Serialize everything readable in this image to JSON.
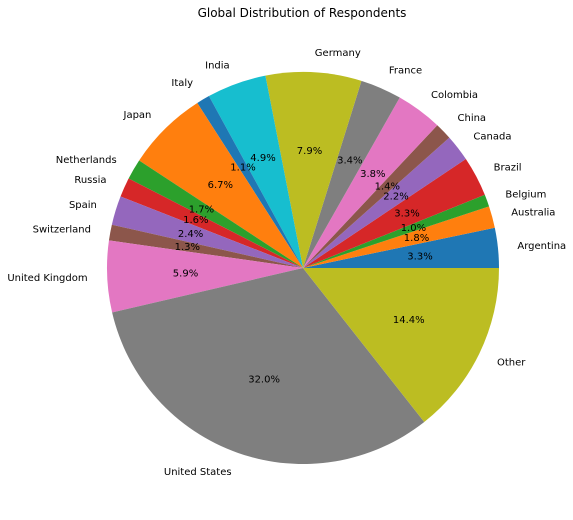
{
  "chart_data": {
    "type": "pie",
    "title": "Global Distribution of Respondents",
    "start_angle_deg": 0,
    "direction": "counterclockwise",
    "slices": [
      {
        "label": "Argentina",
        "value": 3.3,
        "pct_label": "3.3%",
        "color": "#1f77b4"
      },
      {
        "label": "Australia",
        "value": 1.8,
        "pct_label": "1.8%",
        "color": "#ff7f0e"
      },
      {
        "label": "Belgium",
        "value": 1.0,
        "pct_label": "1.0%",
        "color": "#2ca02c"
      },
      {
        "label": "Brazil",
        "value": 3.3,
        "pct_label": "3.3%",
        "color": "#d62728"
      },
      {
        "label": "Canada",
        "value": 2.2,
        "pct_label": "2.2%",
        "color": "#9467bd"
      },
      {
        "label": "China",
        "value": 1.4,
        "pct_label": "1.4%",
        "color": "#8c564b"
      },
      {
        "label": "Colombia",
        "value": 3.8,
        "pct_label": "3.8%",
        "color": "#e377c2"
      },
      {
        "label": "France",
        "value": 3.4,
        "pct_label": "3.4%",
        "color": "#7f7f7f"
      },
      {
        "label": "Germany",
        "value": 7.9,
        "pct_label": "7.9%",
        "color": "#bcbd22"
      },
      {
        "label": "India",
        "value": 4.9,
        "pct_label": "4.9%",
        "color": "#17becf"
      },
      {
        "label": "Italy",
        "value": 1.1,
        "pct_label": "1.1%",
        "color": "#1f77b4"
      },
      {
        "label": "Japan",
        "value": 6.7,
        "pct_label": "6.7%",
        "color": "#ff7f0e"
      },
      {
        "label": "Netherlands",
        "value": 1.7,
        "pct_label": "1.7%",
        "color": "#2ca02c"
      },
      {
        "label": "Russia",
        "value": 1.6,
        "pct_label": "1.6%",
        "color": "#d62728"
      },
      {
        "label": "Spain",
        "value": 2.4,
        "pct_label": "2.4%",
        "color": "#9467bd"
      },
      {
        "label": "Switzerland",
        "value": 1.3,
        "pct_label": "1.3%",
        "color": "#8c564b"
      },
      {
        "label": "United Kingdom",
        "value": 5.9,
        "pct_label": "5.9%",
        "color": "#e377c2"
      },
      {
        "label": "United States",
        "value": 32.0,
        "pct_label": "32.0%",
        "color": "#7f7f7f"
      },
      {
        "label": "Other",
        "value": 14.4,
        "pct_label": "14.4%",
        "color": "#bcbd22"
      }
    ]
  }
}
